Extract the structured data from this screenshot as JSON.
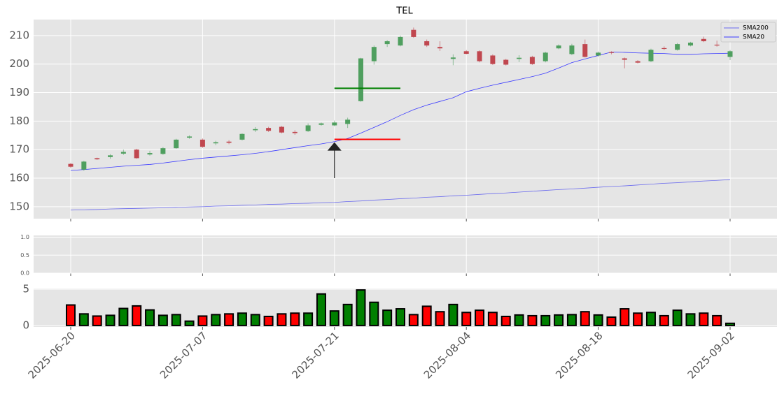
{
  "chart_data": [
    {
      "type": "candlestick",
      "title": "TEL",
      "ylim": [
        145.8,
        215.6
      ],
      "yticks": [
        150,
        160,
        170,
        180,
        190,
        200,
        210
      ],
      "grid": true,
      "up_color": "#4f9f5f",
      "down_color": "#c0474f",
      "open": [
        165.0,
        163.0,
        167.0,
        167.4,
        168.6,
        170.0,
        168.3,
        168.5,
        170.5,
        174.2,
        173.5,
        172.2,
        172.8,
        173.5,
        176.8,
        177.6,
        178.0,
        176.2,
        176.5,
        178.7,
        178.5,
        179.0,
        187.0,
        201.0,
        207.0,
        206.5,
        212.0,
        208.0,
        206.0,
        201.8,
        204.5,
        204.5,
        203.0,
        201.5,
        201.8,
        202.5,
        201.0,
        205.5,
        203.5,
        207.0,
        203.0,
        204.2,
        202.0,
        201.0,
        201.0,
        205.6,
        205.0,
        206.5,
        208.8,
        206.8,
        202.5
      ],
      "high": [
        165.3,
        166.1,
        167.2,
        168.4,
        170.0,
        170.3,
        169.6,
        170.9,
        173.8,
        175.0,
        173.9,
        173.1,
        173.3,
        175.7,
        177.9,
        178.0,
        178.3,
        176.8,
        179.2,
        179.5,
        180.2,
        181.2,
        202.2,
        206.5,
        208.4,
        210.0,
        212.8,
        208.6,
        208.0,
        203.4,
        204.9,
        204.8,
        203.4,
        201.8,
        203.1,
        202.9,
        204.3,
        206.9,
        207.1,
        208.6,
        204.4,
        204.5,
        202.3,
        201.4,
        205.4,
        206.2,
        207.4,
        207.8,
        209.6,
        208.2,
        204.9
      ],
      "low": [
        163.6,
        162.6,
        166.4,
        166.8,
        168.2,
        166.8,
        167.9,
        168.2,
        170.3,
        173.8,
        170.6,
        171.6,
        171.9,
        173.2,
        176.2,
        176.2,
        175.7,
        175.2,
        176.2,
        178.4,
        178.2,
        177.6,
        186.8,
        199.8,
        206.0,
        206.2,
        209.2,
        206.0,
        204.6,
        199.6,
        203.4,
        200.6,
        199.7,
        199.5,
        200.7,
        199.7,
        200.6,
        205.2,
        203.1,
        202.3,
        202.6,
        203.4,
        198.5,
        200.2,
        200.7,
        204.9,
        204.7,
        206.2,
        207.7,
        206.1,
        201.4
      ],
      "close": [
        164.0,
        165.8,
        166.6,
        168.0,
        169.2,
        167.0,
        168.8,
        170.5,
        173.5,
        174.6,
        171.0,
        172.6,
        172.4,
        175.5,
        177.2,
        176.6,
        176.0,
        175.8,
        178.5,
        179.2,
        179.5,
        180.5,
        202.0,
        206.0,
        208.0,
        209.5,
        209.5,
        206.5,
        205.5,
        202.3,
        203.6,
        201.0,
        200.0,
        199.8,
        202.2,
        200.0,
        204.0,
        206.5,
        206.5,
        202.5,
        204.0,
        203.9,
        201.5,
        200.5,
        205.0,
        205.3,
        207.0,
        207.5,
        208.0,
        206.5,
        204.5
      ],
      "series": [
        {
          "name": "SMA200",
          "color": "#6a6aee",
          "values": [
            148.8,
            148.9,
            149.0,
            149.2,
            149.3,
            149.4,
            149.5,
            149.6,
            149.8,
            149.9,
            150.0,
            150.2,
            150.3,
            150.5,
            150.6,
            150.8,
            150.9,
            151.1,
            151.2,
            151.4,
            151.5,
            151.8,
            152.0,
            152.3,
            152.5,
            152.8,
            153.0,
            153.3,
            153.5,
            153.8,
            154.0,
            154.3,
            154.6,
            154.8,
            155.1,
            155.4,
            155.7,
            156.0,
            156.2,
            156.5,
            156.8,
            157.1,
            157.3,
            157.6,
            157.9,
            158.2,
            158.4,
            158.7,
            159.0,
            159.2,
            159.5
          ]
        },
        {
          "name": "SMA20",
          "color": "#3a3aff",
          "values": [
            162.7,
            163.0,
            163.4,
            163.8,
            164.2,
            164.5,
            164.8,
            165.3,
            165.9,
            166.5,
            167.0,
            167.4,
            167.8,
            168.2,
            168.7,
            169.3,
            170.0,
            170.7,
            171.4,
            172.0,
            172.8,
            173.9,
            175.8,
            177.8,
            179.8,
            182.0,
            184.0,
            185.6,
            186.9,
            188.2,
            190.3,
            191.5,
            192.6,
            193.6,
            194.6,
            195.6,
            196.8,
            198.6,
            200.5,
            201.8,
            203.0,
            204.2,
            204.1,
            203.9,
            203.8,
            203.7,
            203.4,
            203.4,
            203.6,
            203.7,
            203.8
          ]
        }
      ],
      "legend": "upper right",
      "hlines": [
        {
          "value": 191.5,
          "start": 20,
          "end": 25,
          "color": "#008000"
        },
        {
          "value": 173.6,
          "start": 20,
          "end": 25,
          "color": "#ff0000"
        }
      ],
      "arrow": {
        "x": 20,
        "from": 160,
        "to": 172.6
      }
    },
    {
      "type": "empty",
      "ylim": [
        0,
        1.05
      ],
      "yticks": [
        {
          "value": 0,
          "label": "0.0"
        },
        {
          "value": 0.5,
          "label": "0.5"
        },
        {
          "value": 1,
          "label": "1.0"
        }
      ],
      "grid": true
    },
    {
      "type": "volume",
      "ylim": [
        -0.2,
        5.1
      ],
      "yticks": [
        0,
        5
      ],
      "grid": true,
      "up_color": "#008000",
      "down_color": "#ff0000",
      "categories": [
        "2025-06-20",
        null,
        null,
        null,
        null,
        null,
        null,
        null,
        null,
        null,
        "2025-07-07",
        null,
        null,
        null,
        null,
        null,
        null,
        null,
        null,
        null,
        "2025-07-21",
        null,
        null,
        null,
        null,
        null,
        null,
        null,
        null,
        null,
        "2025-08-04",
        null,
        null,
        null,
        null,
        null,
        null,
        null,
        null,
        null,
        "2025-08-18",
        null,
        null,
        null,
        null,
        null,
        null,
        null,
        null,
        null,
        "2025-09-02"
      ],
      "values": [
        2.83,
        1.6,
        1.3,
        1.4,
        2.35,
        2.7,
        2.15,
        1.4,
        1.5,
        0.6,
        1.3,
        1.5,
        1.6,
        1.7,
        1.5,
        1.25,
        1.6,
        1.7,
        1.7,
        4.35,
        2.0,
        2.9,
        4.9,
        3.2,
        2.1,
        2.3,
        1.5,
        2.65,
        1.9,
        2.9,
        1.8,
        2.1,
        1.8,
        1.25,
        1.45,
        1.35,
        1.35,
        1.45,
        1.5,
        1.9,
        1.45,
        1.15,
        2.3,
        1.7,
        1.8,
        1.35,
        2.1,
        1.6,
        1.7,
        1.35,
        0.3
      ]
    }
  ]
}
